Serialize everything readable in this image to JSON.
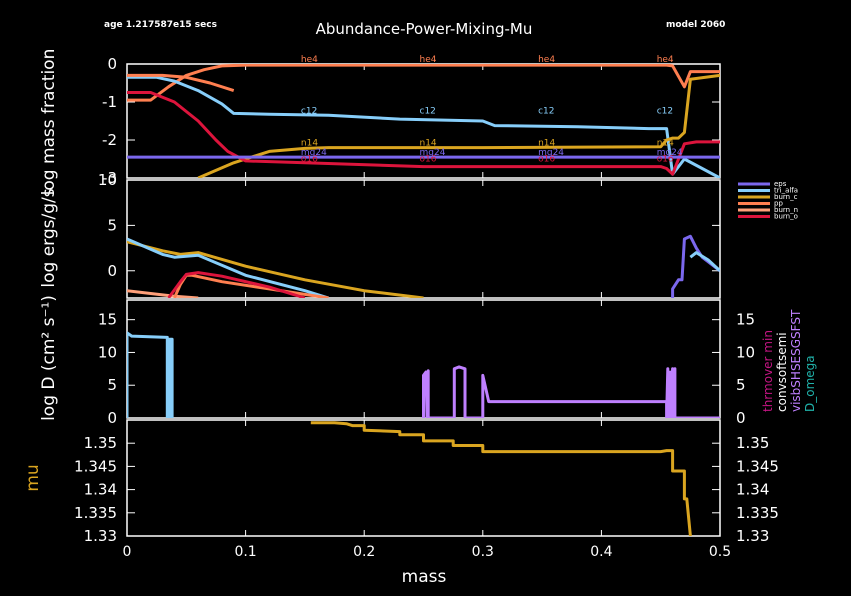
{
  "header": {
    "age": "age 1.217587e15 secs",
    "title": "Abundance-Power-Mixing-Mu",
    "model": "model 2060"
  },
  "colors": {
    "h1": "#ff7f50",
    "he4": "#ff7f50",
    "c12": "#87cefa",
    "n14": "#daa520",
    "o16": "#dc143c",
    "mg24": "#7b68ee",
    "eps_nuc": "#7b68ee",
    "tri_alfa": "#87cefa",
    "burn_c": "#daa520",
    "pp": "#ff7f50",
    "burn_n": "#ffa07a",
    "burn_o": "#dc143c",
    "mixing": "#87cefa",
    "convective": "#bf80ff",
    "mu": "#daa520"
  },
  "chart_data": [
    {
      "type": "line",
      "id": "abundance",
      "ylabel": "log mass fraction",
      "xlim": [
        0,
        0.5
      ],
      "ylim": [
        -3,
        0
      ],
      "yticks": [
        "0",
        "-1",
        "-2",
        "-3"
      ],
      "iso_labels": [
        "he4",
        "c12",
        "n14",
        "o16",
        "mg24"
      ],
      "series": [
        {
          "name": "he4",
          "key": "he4",
          "x": [
            0,
            0.02,
            0.035,
            0.05,
            0.065,
            0.08,
            0.1,
            0.15,
            0.3,
            0.455,
            0.46,
            0.47,
            0.475,
            0.5
          ],
          "y": [
            -0.95,
            -0.95,
            -0.6,
            -0.3,
            -0.15,
            -0.05,
            -0.03,
            -0.03,
            -0.03,
            -0.03,
            -0.05,
            -0.6,
            -0.2,
            -0.2
          ]
        },
        {
          "name": "c12",
          "key": "c12",
          "x": [
            0,
            0.025,
            0.04,
            0.06,
            0.08,
            0.09,
            0.12,
            0.17,
            0.23,
            0.3,
            0.31,
            0.38,
            0.44,
            0.455,
            0.46,
            0.47,
            0.5
          ],
          "y": [
            -0.35,
            -0.35,
            -0.45,
            -0.7,
            -1.05,
            -1.3,
            -1.32,
            -1.35,
            -1.45,
            -1.5,
            -1.62,
            -1.65,
            -1.7,
            -1.7,
            -2.9,
            -2.5,
            -3
          ]
        },
        {
          "name": "n14",
          "key": "n14",
          "x": [
            0.06,
            0.075,
            0.09,
            0.12,
            0.15,
            0.17,
            0.2,
            0.3,
            0.45,
            0.455,
            0.46,
            0.465,
            0.47,
            0.475,
            0.5
          ],
          "y": [
            -3,
            -2.8,
            -2.6,
            -2.3,
            -2.22,
            -2.2,
            -2.2,
            -2.2,
            -2.18,
            -2.0,
            -1.95,
            -1.95,
            -1.8,
            -0.4,
            -0.3
          ]
        },
        {
          "name": "o16",
          "key": "o16",
          "x": [
            0,
            0.02,
            0.04,
            0.06,
            0.075,
            0.085,
            0.1,
            0.15,
            0.25,
            0.45,
            0.455,
            0.46,
            0.47,
            0.48,
            0.5
          ],
          "y": [
            -0.75,
            -0.75,
            -1.0,
            -1.5,
            -2.0,
            -2.3,
            -2.55,
            -2.6,
            -2.7,
            -2.7,
            -2.75,
            -2.9,
            -2.1,
            -2.05,
            -2.05
          ]
        },
        {
          "name": "mg24",
          "key": "mg24",
          "x": [
            0,
            0.5
          ],
          "y": [
            -2.45,
            -2.45
          ]
        },
        {
          "name": "h1",
          "key": "h1",
          "x": [
            0,
            0.03,
            0.05,
            0.07,
            0.09
          ],
          "y": [
            -0.3,
            -0.3,
            -0.35,
            -0.5,
            -0.7
          ]
        }
      ]
    },
    {
      "type": "line",
      "id": "power",
      "ylabel": "log ergs/g/s",
      "xlim": [
        0,
        0.5
      ],
      "ylim": [
        -3,
        10
      ],
      "yticks": [
        "10",
        "5",
        "0"
      ],
      "legend": [
        "eps",
        "tri_alfa",
        "burn_c",
        "pp",
        "burn_n",
        "burn_o"
      ],
      "legend_keys": [
        "eps_nuc",
        "tri_alfa",
        "burn_c",
        "pp",
        "burn_n",
        "burn_o"
      ],
      "series": [
        {
          "name": "burn_c",
          "key": "burn_c",
          "x": [
            0,
            0.03,
            0.045,
            0.06,
            0.1,
            0.15,
            0.2,
            0.25
          ],
          "y": [
            3.2,
            2.2,
            1.8,
            2.0,
            0.5,
            -1.0,
            -2.2,
            -3
          ]
        },
        {
          "name": "tri_alfa",
          "key": "tri_alfa",
          "x": [
            0,
            0.03,
            0.04,
            0.06,
            0.1,
            0.15,
            0.17
          ],
          "y": [
            3.5,
            1.8,
            1.5,
            1.7,
            -0.5,
            -2.2,
            -3
          ]
        },
        {
          "name": "burn_n",
          "key": "burn_n",
          "x": [
            0,
            0.02,
            0.04,
            0.06
          ],
          "y": [
            -2.2,
            -2.5,
            -2.8,
            -3
          ]
        },
        {
          "name": "pp",
          "key": "pp",
          "x": [
            0.04,
            0.045,
            0.05,
            0.055,
            0.08,
            0.12,
            0.15,
            0.17
          ],
          "y": [
            -3,
            -1.5,
            -0.5,
            -0.5,
            -1.2,
            -2.0,
            -2.6,
            -3
          ]
        },
        {
          "name": "burn_o",
          "key": "burn_o",
          "x": [
            0.035,
            0.045,
            0.05,
            0.06,
            0.08,
            0.12,
            0.15
          ],
          "y": [
            -3,
            -1.2,
            -0.4,
            -0.2,
            -0.6,
            -1.8,
            -3
          ]
        },
        {
          "name": "eps",
          "key": "eps_nuc",
          "x": [
            0.46,
            0.46,
            0.465,
            0.468,
            0.47,
            0.475,
            0.48,
            0.485,
            0.49,
            0.5
          ],
          "y": [
            -3,
            -2.0,
            -1.0,
            -1.0,
            3.5,
            3.8,
            2.5,
            1.5,
            1.0,
            0
          ]
        },
        {
          "name": "tri_alfa_edge",
          "key": "tri_alfa",
          "x": [
            0.475,
            0.48,
            0.49,
            0.5
          ],
          "y": [
            1.5,
            2.0,
            1.2,
            0
          ]
        }
      ]
    },
    {
      "type": "line",
      "id": "mixing",
      "ylabel": "log D (cm² s⁻¹)",
      "xlim": [
        0,
        0.5
      ],
      "ylim": [
        0,
        18
      ],
      "yticks": [
        "15",
        "10",
        "5",
        "0"
      ],
      "legend": [
        "thrmover min",
        "convsoftsemi",
        "visbSHSESGSFST",
        "D_omega"
      ],
      "series": [
        {
          "name": "mixing_core",
          "key": "mixing",
          "x": [
            0,
            0,
            0.004,
            0.034,
            0.034,
            0.036,
            0.036,
            0.038,
            0.038
          ],
          "y": [
            0,
            13,
            12.5,
            12.3,
            0,
            0,
            12,
            12,
            0
          ]
        },
        {
          "name": "convective_envelope",
          "key": "convective",
          "x": [
            0.25,
            0.25,
            0.252,
            0.253,
            0.253,
            0.254,
            0.254,
            0.258,
            0.276,
            0.276,
            0.28,
            0.285,
            0.285,
            0.29,
            0.29,
            0.3,
            0.3,
            0.305,
            0.32,
            0.4,
            0.45,
            0.455,
            0.455,
            0.456,
            0.456,
            0.458,
            0.458,
            0.46,
            0.46,
            0.462,
            0.462,
            0.5
          ],
          "y": [
            0,
            6.5,
            7.0,
            0,
            6.8,
            7.2,
            0,
            0,
            0,
            7.5,
            7.8,
            7.5,
            0,
            0,
            0,
            0,
            6.5,
            2.5,
            2.5,
            2.5,
            2.5,
            2.5,
            0,
            7.5,
            0,
            7.0,
            0,
            7.5,
            0,
            7.5,
            0,
            0
          ]
        }
      ]
    },
    {
      "type": "line",
      "id": "mu",
      "ylabel": "mu",
      "xlabel": "mass",
      "xlim": [
        0,
        0.5
      ],
      "ylim": [
        1.33,
        1.355
      ],
      "xticks": [
        "0",
        "0.1",
        "0.2",
        "0.3",
        "0.4",
        "0.5"
      ],
      "yticks": [
        "1.35",
        "1.345",
        "1.34",
        "1.335",
        "1.33"
      ],
      "series": [
        {
          "name": "mu",
          "key": "mu",
          "x": [
            0.155,
            0.175,
            0.185,
            0.19,
            0.2,
            0.2,
            0.23,
            0.23,
            0.25,
            0.25,
            0.275,
            0.275,
            0.3,
            0.3,
            0.45,
            0.455,
            0.46,
            0.46,
            0.47,
            0.47,
            0.472,
            0.475
          ],
          "y": [
            1.3544,
            1.3544,
            1.3542,
            1.3538,
            1.3538,
            1.3528,
            1.3525,
            1.3518,
            1.3518,
            1.3505,
            1.3505,
            1.3495,
            1.3495,
            1.3482,
            1.3482,
            1.3484,
            1.3484,
            1.344,
            1.344,
            1.338,
            1.338,
            1.33
          ]
        }
      ]
    }
  ]
}
